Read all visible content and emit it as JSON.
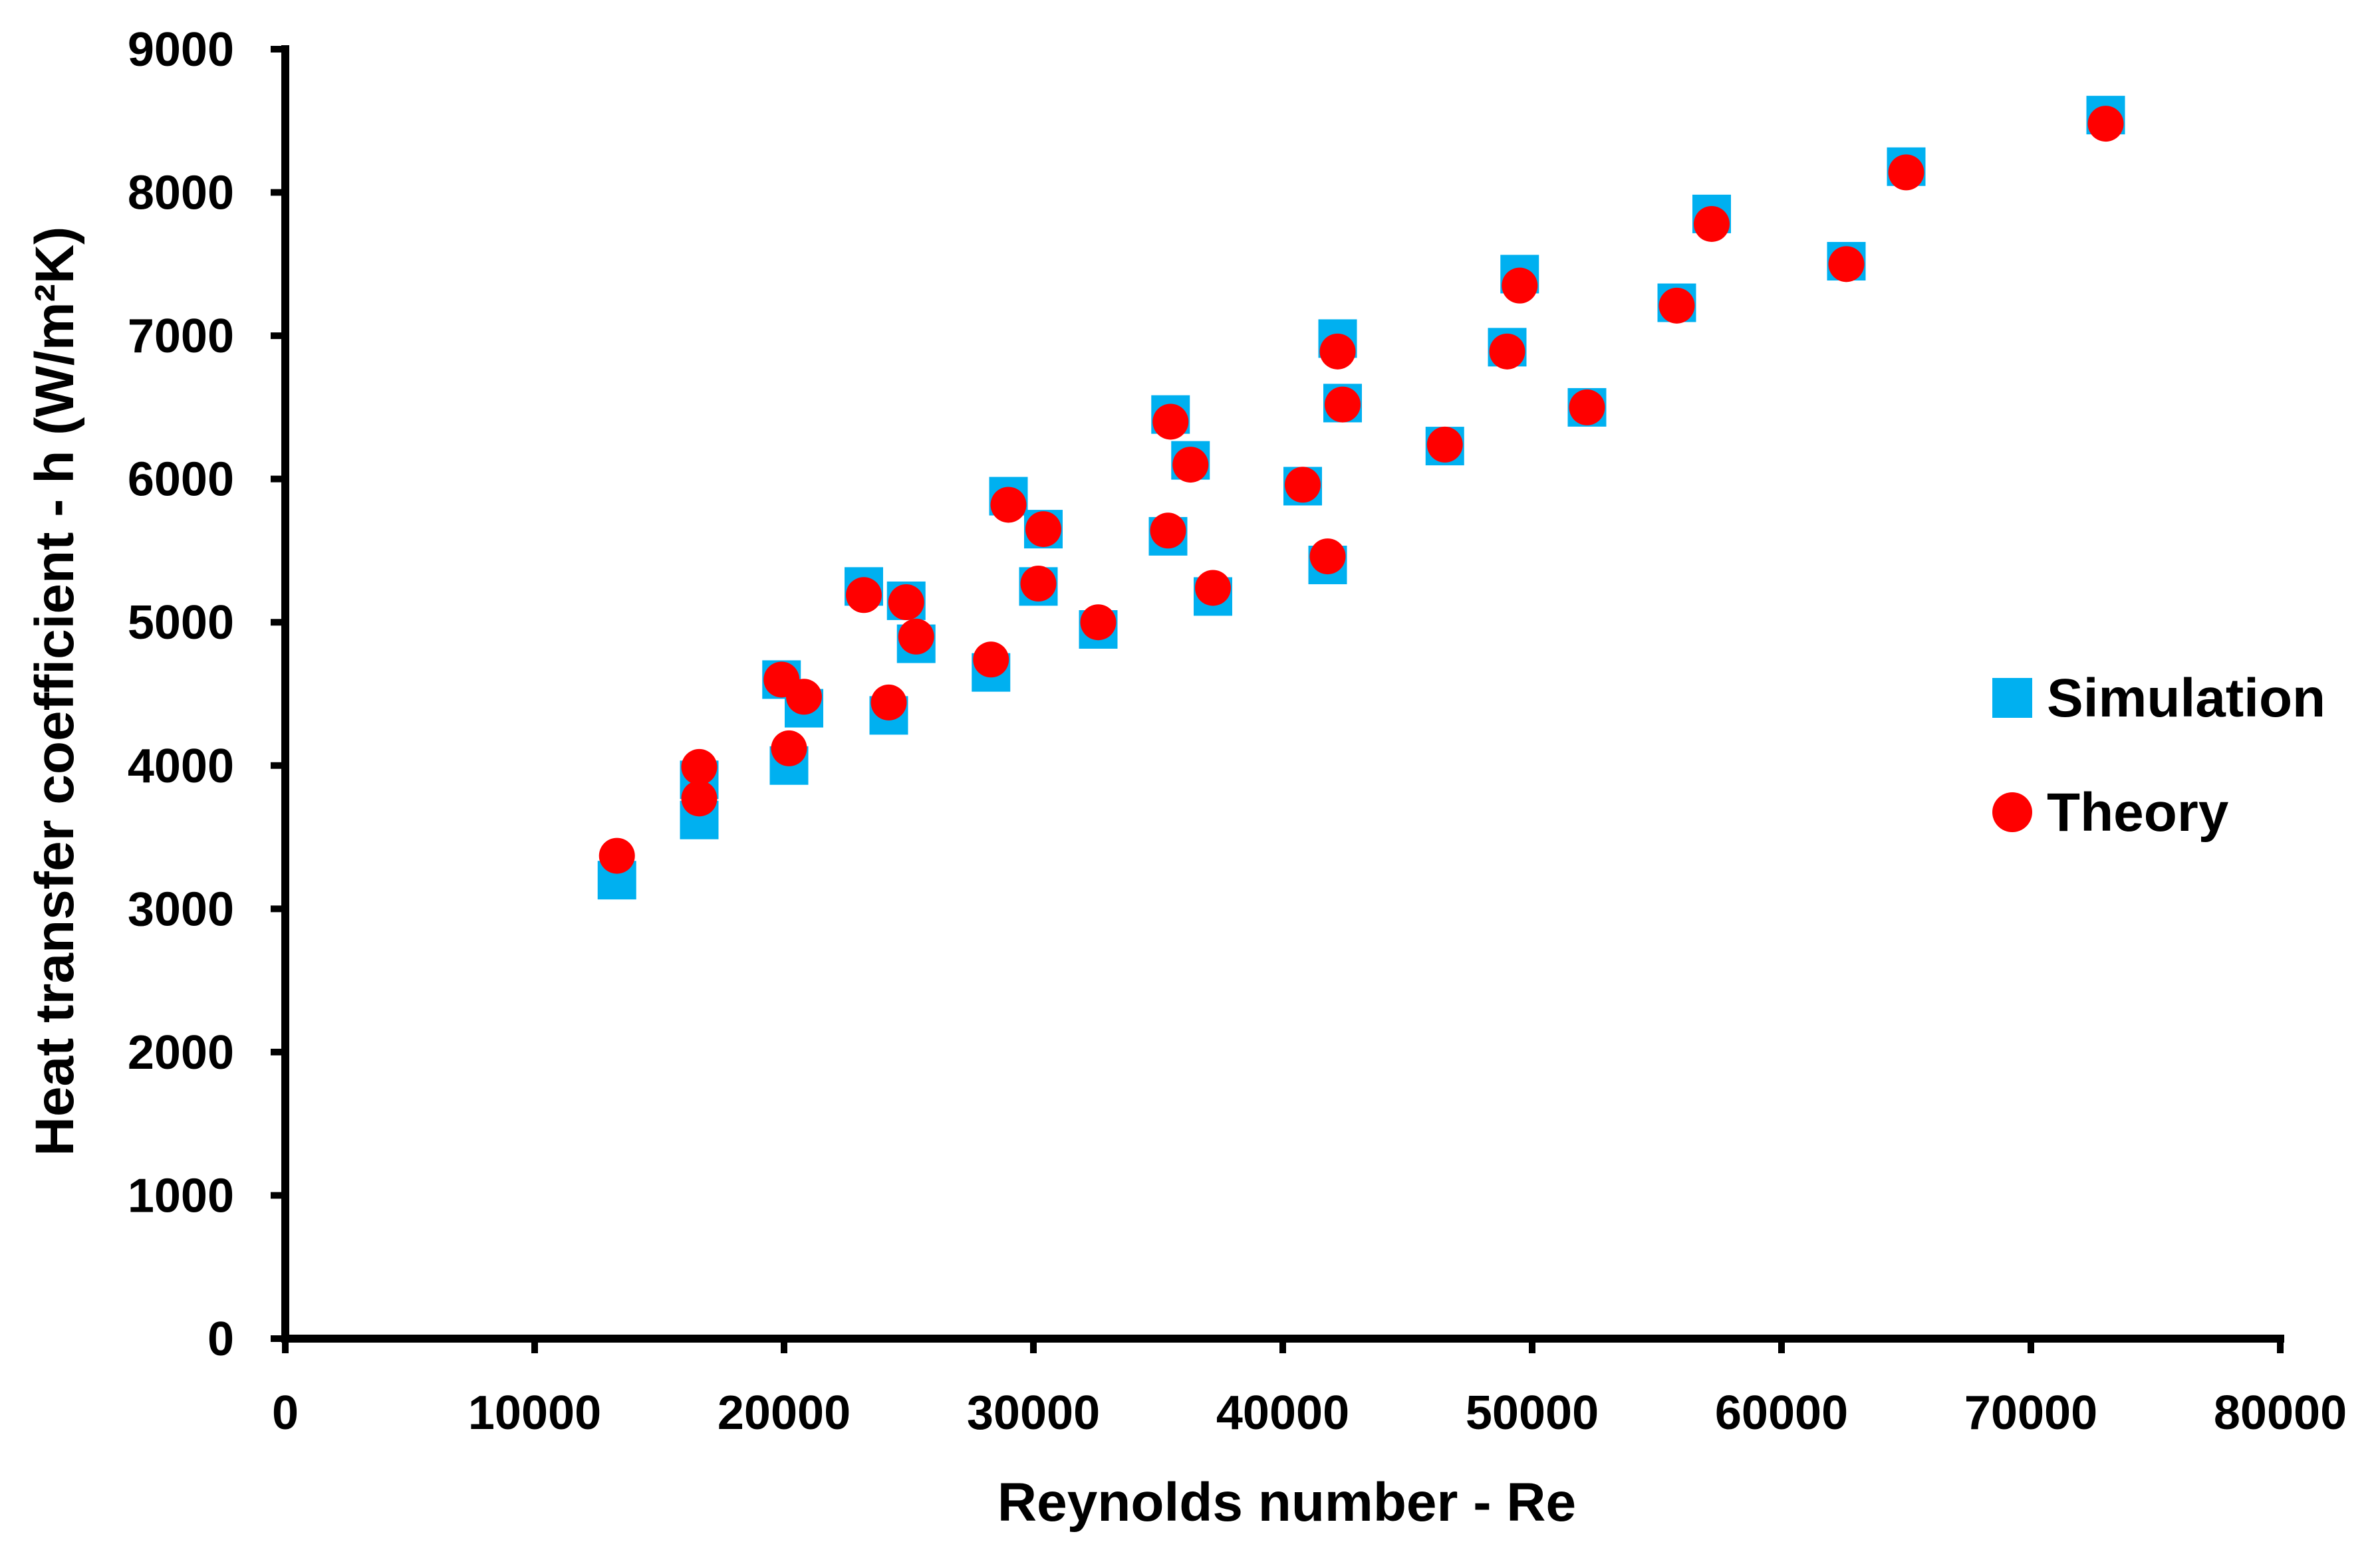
{
  "chart_data": {
    "type": "scatter",
    "title": "",
    "xlabel": "Reynolds number - Re",
    "ylabel": "Heat transfer coefficient - h (W/m²K)",
    "xlim": [
      0,
      80000
    ],
    "ylim": [
      0,
      9000
    ],
    "x_ticks": [
      "0",
      "10000",
      "20000",
      "30000",
      "40000",
      "50000",
      "60000",
      "70000",
      "80000"
    ],
    "y_ticks": [
      "0",
      "1000",
      "2000",
      "3000",
      "4000",
      "5000",
      "6000",
      "7000",
      "8000",
      "9000"
    ],
    "grid": false,
    "legend_position": "right",
    "series": [
      {
        "name": "Simulation",
        "marker": "square",
        "color": "#00B0F0",
        "points": [
          [
            13300,
            3200
          ],
          [
            16600,
            3620
          ],
          [
            16600,
            3900
          ],
          [
            20200,
            4000
          ],
          [
            19900,
            4600
          ],
          [
            20800,
            4400
          ],
          [
            23200,
            5250
          ],
          [
            24200,
            4350
          ],
          [
            24900,
            5150
          ],
          [
            25300,
            4850
          ],
          [
            28300,
            4650
          ],
          [
            29000,
            5880
          ],
          [
            30200,
            5250
          ],
          [
            30400,
            5650
          ],
          [
            32600,
            4950
          ],
          [
            35400,
            5600
          ],
          [
            35500,
            6450
          ],
          [
            36300,
            6130
          ],
          [
            37200,
            5180
          ],
          [
            40800,
            5950
          ],
          [
            41800,
            5400
          ],
          [
            42200,
            6980
          ],
          [
            42400,
            6530
          ],
          [
            46500,
            6230
          ],
          [
            49000,
            6920
          ],
          [
            49500,
            7430
          ],
          [
            52200,
            6500
          ],
          [
            55800,
            7230
          ],
          [
            57200,
            7850
          ],
          [
            62600,
            7520
          ],
          [
            65000,
            8180
          ],
          [
            73000,
            8540
          ]
        ]
      },
      {
        "name": "Theory",
        "marker": "circle",
        "color": "#FF0000",
        "points": [
          [
            13300,
            3370
          ],
          [
            16600,
            3770
          ],
          [
            16600,
            3990
          ],
          [
            20200,
            4120
          ],
          [
            19900,
            4600
          ],
          [
            20800,
            4480
          ],
          [
            23200,
            5190
          ],
          [
            24200,
            4440
          ],
          [
            24900,
            5140
          ],
          [
            25300,
            4900
          ],
          [
            28300,
            4740
          ],
          [
            29000,
            5820
          ],
          [
            30200,
            5270
          ],
          [
            30400,
            5650
          ],
          [
            32600,
            5000
          ],
          [
            35400,
            5640
          ],
          [
            35500,
            6400
          ],
          [
            36300,
            6100
          ],
          [
            37200,
            5240
          ],
          [
            40800,
            5960
          ],
          [
            41800,
            5460
          ],
          [
            42200,
            6890
          ],
          [
            42400,
            6520
          ],
          [
            46500,
            6240
          ],
          [
            49000,
            6890
          ],
          [
            49500,
            7350
          ],
          [
            52200,
            6500
          ],
          [
            55800,
            7210
          ],
          [
            57200,
            7780
          ],
          [
            62600,
            7500
          ],
          [
            65000,
            8140
          ],
          [
            73000,
            8480
          ]
        ]
      }
    ]
  }
}
